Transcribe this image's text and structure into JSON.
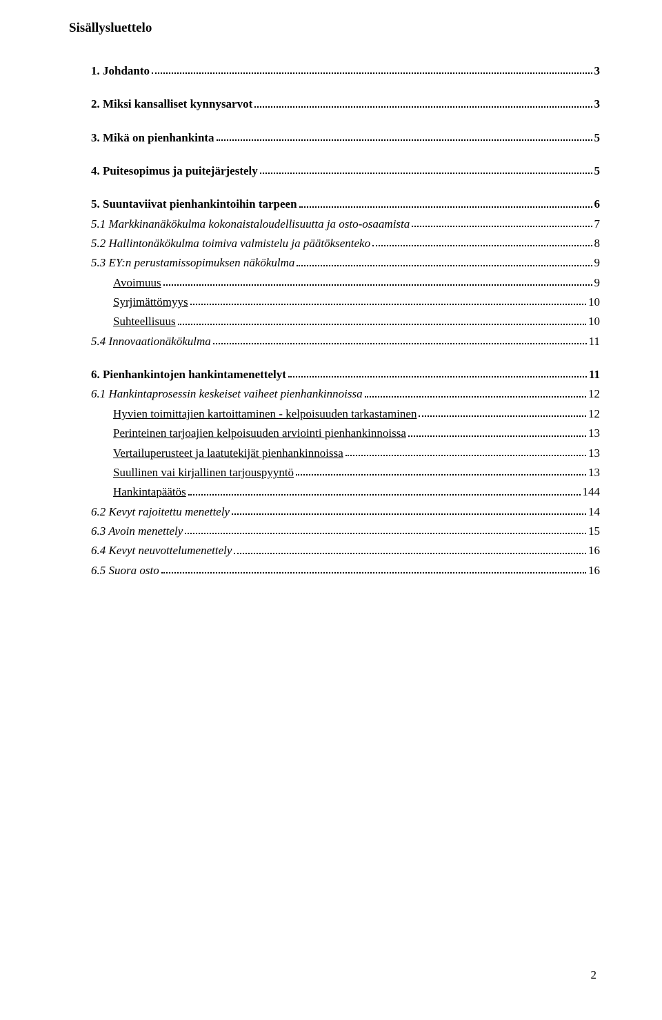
{
  "title": "Sisällysluettelo",
  "page_number": "2",
  "entries": [
    {
      "label": "1. Johdanto",
      "page": "3",
      "bold": true,
      "indent": 1,
      "spaced": true
    },
    {
      "label": "2. Miksi kansalliset kynnysarvot",
      "page": "3",
      "bold": true,
      "indent": 1,
      "spaced": true
    },
    {
      "label": "3. Mikä on pienhankinta",
      "page": "5",
      "bold": true,
      "indent": 1,
      "spaced": true
    },
    {
      "label": "4. Puitesopimus ja puitejärjestely",
      "page": "5",
      "bold": true,
      "indent": 1,
      "spaced": true
    },
    {
      "label": "5. Suuntaviivat pienhankintoihin tarpeen",
      "page": "6",
      "bold": true,
      "indent": 1,
      "spaced": true
    },
    {
      "label": "5.1 Markkinanäkökulma kokonaistaloudellisuutta ja osto-osaamista",
      "page": "7",
      "italic": true,
      "indent": 1
    },
    {
      "label": "5.2 Hallintonäkökulma toimiva valmistelu ja päätöksenteko",
      "page": "8",
      "italic": true,
      "indent": 1
    },
    {
      "label": "5.3 EY:n perustamissopimuksen näkökulma",
      "page": "9",
      "italic": true,
      "indent": 1
    },
    {
      "label": "Avoimuus",
      "page": "9",
      "underline": true,
      "indent": 2
    },
    {
      "label": "Syrjimättömyys",
      "page": "10",
      "underline": true,
      "indent": 2
    },
    {
      "label": "Suhteellisuus",
      "page": "10",
      "underline": true,
      "indent": 2
    },
    {
      "label": "5.4 Innovaationäkökulma",
      "page": "11",
      "italic": true,
      "indent": 1
    },
    {
      "label": "6. Pienhankintojen hankintamenettelyt",
      "page": "11",
      "bold": true,
      "indent": 1,
      "spaced": true
    },
    {
      "label": "6.1 Hankintaprosessin keskeiset vaiheet pienhankinnoissa",
      "page": "12",
      "italic": true,
      "indent": 1
    },
    {
      "label": "Hyvien toimittajien kartoittaminen - kelpoisuuden tarkastaminen",
      "page": "12",
      "underline": true,
      "indent": 2
    },
    {
      "label": "Perinteinen tarjoajien kelpoisuuden arviointi pienhankinnoissa",
      "page": "13",
      "underline": true,
      "indent": 2
    },
    {
      "label": "Vertailuperusteet ja laatutekijät pienhankinnoissa",
      "page": "13",
      "underline": true,
      "indent": 2
    },
    {
      "label": "Suullinen vai kirjallinen tarjouspyyntö",
      "page": "13",
      "underline": true,
      "indent": 2
    },
    {
      "label": "Hankintapäätös",
      "page": "144",
      "underline": true,
      "indent": 2
    },
    {
      "label": "6.2 Kevyt rajoitettu menettely",
      "page": "14",
      "italic": true,
      "indent": 1
    },
    {
      "label": "6.3 Avoin menettely",
      "page": "15",
      "italic": true,
      "indent": 1
    },
    {
      "label": "6.4 Kevyt neuvottelumenettely",
      "page": "16",
      "italic": true,
      "indent": 1
    },
    {
      "label": "6.5 Suora osto",
      "page": "16",
      "italic": true,
      "indent": 1
    }
  ]
}
